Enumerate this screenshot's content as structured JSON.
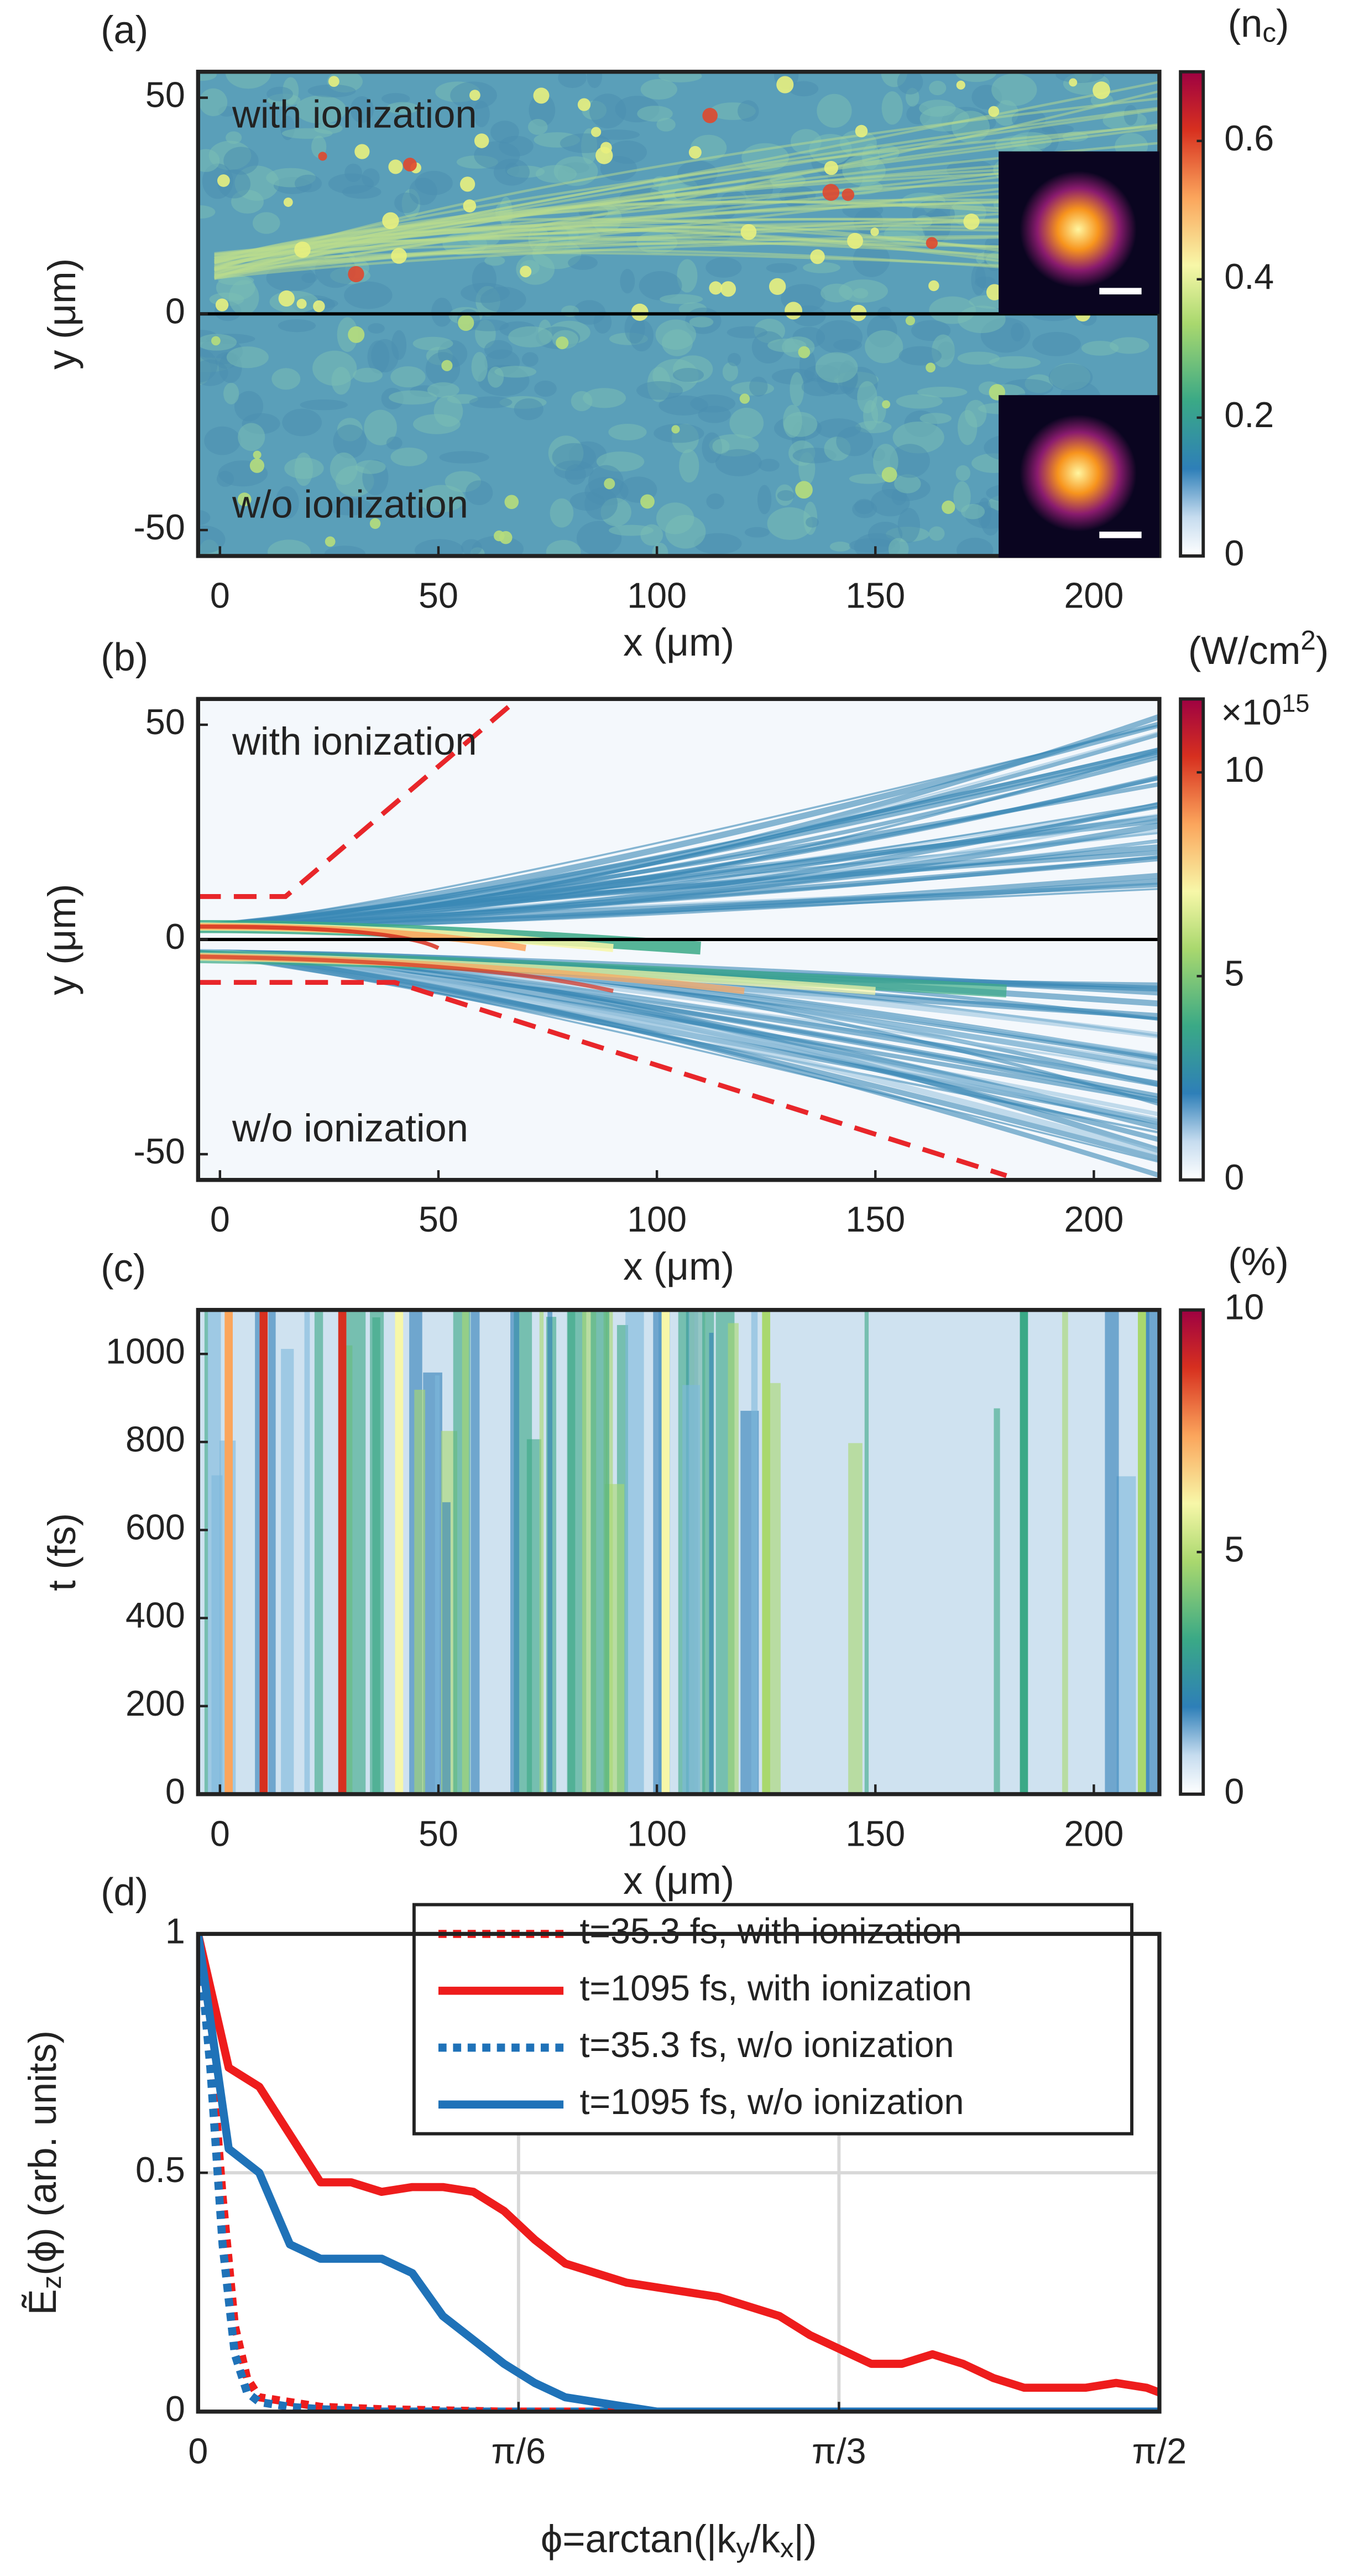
{
  "chart_data": [
    {
      "type": "heatmap",
      "panel": "(a)",
      "xlabel": "x (μm)",
      "ylabel": "y (μm)",
      "xlim": [
        -5,
        215
      ],
      "ylim": [
        -56,
        56
      ],
      "xticks": [
        0,
        50,
        100,
        150,
        200
      ],
      "yticks": [
        -50,
        0,
        50
      ],
      "annotations": [
        "with ionization",
        "w/o ionization"
      ],
      "zero_line": true,
      "colorbar": {
        "title": [
          {
            "text": "(n"
          },
          {
            "text": "c",
            "shift": "sub"
          },
          {
            "text": ")"
          }
        ],
        "clim": [
          0,
          0.7
        ],
        "ticks": [
          0,
          0.2,
          0.4,
          0.6
        ]
      }
    },
    {
      "type": "heatmap",
      "panel": "(b)",
      "xlabel": "x (μm)",
      "ylabel": "y (μm)",
      "xlim": [
        -5,
        215
      ],
      "ylim": [
        -56,
        56
      ],
      "xticks": [
        0,
        50,
        100,
        150,
        200
      ],
      "yticks": [
        -50,
        0,
        50
      ],
      "annotations": [
        "with ionization",
        "w/o ionization"
      ],
      "zero_line": true,
      "colorbar": {
        "title": [
          {
            "text": "(W/cm"
          },
          {
            "text": "2",
            "shift": "sup"
          },
          {
            "text": ")"
          }
        ],
        "multiplier": [
          {
            "text": "×10"
          },
          {
            "text": "15",
            "shift": "sup"
          }
        ],
        "clim": [
          0,
          11.8
        ],
        "ticks": [
          0,
          5,
          10
        ]
      },
      "overlay_lines": [
        {
          "color": "#e8262a",
          "dash": true,
          "x": [
            -5,
            15,
            67
          ],
          "y": [
            10,
            10,
            55
          ]
        },
        {
          "color": "#e8262a",
          "dash": true,
          "x": [
            -5,
            40,
            180
          ],
          "y": [
            -10,
            -10,
            -55
          ]
        }
      ]
    },
    {
      "type": "heatmap",
      "panel": "(c)",
      "xlabel": "x (μm)",
      "ylabel": "t (fs)",
      "xlim": [
        -5,
        215
      ],
      "ylim": [
        0,
        1100
      ],
      "xticks": [
        0,
        50,
        100,
        150,
        200
      ],
      "yticks": [
        0,
        200,
        400,
        600,
        800,
        1000
      ],
      "colorbar": {
        "title": [
          {
            "text": "(%)"
          }
        ],
        "clim": [
          0,
          10
        ],
        "ticks": [
          0,
          5,
          10
        ]
      }
    },
    {
      "type": "line",
      "panel": "(d)",
      "xlabel": [
        {
          "text": "ϕ=arctan(|k"
        },
        {
          "text": "y",
          "shift": "sub"
        },
        {
          "text": "/k"
        },
        {
          "text": "x",
          "shift": "sub"
        },
        {
          "text": "|)"
        }
      ],
      "ylabel": [
        {
          "text": "Ẽ"
        },
        {
          "text": "z",
          "shift": "sub"
        },
        {
          "text": "(ϕ) (arb. units)"
        }
      ],
      "xlim": [
        0,
        1.5708
      ],
      "ylim": [
        0,
        1
      ],
      "xticks": [
        0,
        {
          "value": 0.5236,
          "label": "π/6"
        },
        {
          "value": 1.0472,
          "label": "π/3"
        },
        {
          "value": 1.5708,
          "label": "π/2"
        }
      ],
      "yticks": [
        0,
        0.5,
        1
      ],
      "grid": true,
      "legend": "upper right",
      "series": [
        {
          "name": "t=35.3 fs, with ionization",
          "color": "#ee1c1c",
          "dash": true,
          "x": [
            0,
            0.02,
            0.04,
            0.06,
            0.08,
            0.1,
            0.15,
            0.2,
            0.3,
            0.5,
            0.8,
            1.2,
            1.5708
          ],
          "values": [
            1,
            0.78,
            0.45,
            0.18,
            0.07,
            0.03,
            0.02,
            0.01,
            0.005,
            0,
            0,
            0,
            0
          ]
        },
        {
          "name": "t=1095 fs, with ionization",
          "color": "#ee1c1c",
          "dash": false,
          "x": [
            0,
            0.05,
            0.1,
            0.15,
            0.2,
            0.25,
            0.3,
            0.35,
            0.4,
            0.45,
            0.5,
            0.55,
            0.6,
            0.65,
            0.7,
            0.75,
            0.8,
            0.85,
            0.9,
            0.95,
            1.0,
            1.05,
            1.1,
            1.15,
            1.2,
            1.25,
            1.3,
            1.35,
            1.4,
            1.45,
            1.5,
            1.55,
            1.5708
          ],
          "values": [
            1,
            0.72,
            0.68,
            0.58,
            0.48,
            0.48,
            0.46,
            0.47,
            0.47,
            0.46,
            0.42,
            0.36,
            0.31,
            0.29,
            0.27,
            0.26,
            0.25,
            0.24,
            0.22,
            0.2,
            0.16,
            0.13,
            0.1,
            0.1,
            0.12,
            0.1,
            0.07,
            0.05,
            0.05,
            0.05,
            0.06,
            0.05,
            0.04
          ]
        },
        {
          "name": "t=35.3 fs, w/o ionization",
          "color": "#1f72b8",
          "dash": true,
          "x": [
            0,
            0.02,
            0.04,
            0.06,
            0.08,
            0.1,
            0.15,
            0.2,
            0.3,
            0.5,
            0.8,
            1.2,
            1.5708
          ],
          "values": [
            1,
            0.72,
            0.35,
            0.12,
            0.04,
            0.02,
            0.01,
            0.005,
            0,
            0,
            0,
            0,
            0
          ]
        },
        {
          "name": "t=1095 fs, w/o ionization",
          "color": "#1f72b8",
          "dash": false,
          "x": [
            0,
            0.05,
            0.1,
            0.15,
            0.2,
            0.25,
            0.3,
            0.35,
            0.4,
            0.45,
            0.5,
            0.55,
            0.6,
            0.65,
            0.7,
            0.75,
            0.8,
            0.9,
            1.0,
            1.2,
            1.4,
            1.5708
          ],
          "values": [
            1,
            0.55,
            0.5,
            0.35,
            0.32,
            0.32,
            0.32,
            0.29,
            0.2,
            0.15,
            0.1,
            0.06,
            0.03,
            0.02,
            0.01,
            0,
            0,
            0,
            0,
            0,
            0,
            0
          ]
        }
      ]
    }
  ]
}
